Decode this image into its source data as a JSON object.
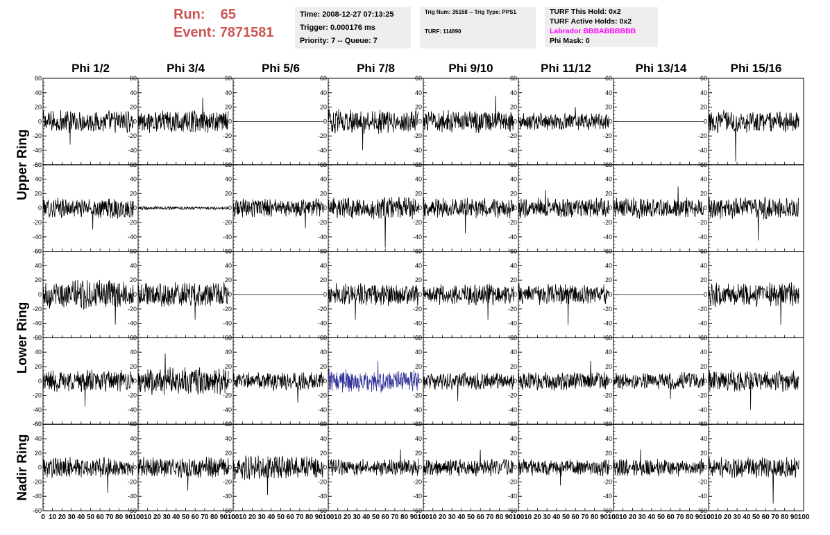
{
  "header": {
    "run_label": "Run:",
    "run_value": "65",
    "event_label": "Event:",
    "event_value": "7871581"
  },
  "time_box": {
    "time": "Time: 2008-12-27 07:13:25",
    "trigger": "Trigger: 0.000176 ms",
    "priority": "Priority: 7 -- Queue: 7"
  },
  "trig_box": {
    "trig": "Trig Num: 35158 -- Trig Type: PPS1",
    "turf": "TURF: 114890"
  },
  "turf_box": {
    "this_hold": "TURF This Hold: 0x2",
    "active_holds": "TURF Active Holds: 0x2",
    "labrador": "Labrador BBBABBBBBB",
    "phi_mask": "Phi Mask: 0"
  },
  "colors": {
    "run_text": "#cc5555",
    "labrador_text": "#ff00ff",
    "trace": "#000000",
    "highlight_trace": "#333399",
    "info_background": "#eeeeee"
  },
  "chart_data": {
    "type": "line",
    "columns": [
      "Phi 1/2",
      "Phi 3/4",
      "Phi 5/6",
      "Phi 7/8",
      "Phi 9/10",
      "Phi 11/12",
      "Phi 13/14",
      "Phi 15/16"
    ],
    "ring_labels": [
      "Upper Ring",
      "Lower Ring",
      "Nadir Ring"
    ],
    "rows": 5,
    "xlim": [
      0,
      100
    ],
    "ylim": [
      -60,
      60
    ],
    "x_ticks": [
      0,
      10,
      20,
      30,
      40,
      50,
      60,
      70,
      80,
      90,
      100
    ],
    "y_ticks": [
      -60,
      -40,
      -20,
      0,
      20,
      40,
      60
    ],
    "samples": 260,
    "x_end": 95,
    "panels": [
      [
        {
          "amp": 13,
          "spike": -32
        },
        {
          "amp": 13,
          "spike": 33
        },
        {
          "amp": 0
        },
        {
          "amp": 14,
          "spike": -40
        },
        {
          "amp": 13,
          "spike": 36
        },
        {
          "amp": 10,
          "spike": 20
        },
        {
          "amp": 0
        },
        {
          "amp": 13,
          "spike": -55
        }
      ],
      [
        {
          "amp": 12,
          "spike": -30
        },
        {
          "amp": 2
        },
        {
          "amp": 11,
          "spike": -28
        },
        {
          "amp": 13,
          "spike": -55
        },
        {
          "amp": 12,
          "spike": -35
        },
        {
          "amp": 12,
          "spike": 25
        },
        {
          "amp": 12,
          "spike": 30
        },
        {
          "amp": 13,
          "spike": -45
        }
      ],
      [
        {
          "amp": 17,
          "spike": -42
        },
        {
          "amp": 15,
          "spike": -35
        },
        {
          "amp": 0
        },
        {
          "amp": 13,
          "spike": -35
        },
        {
          "amp": 12,
          "spike": -35
        },
        {
          "amp": 12,
          "spike": -42
        },
        {
          "amp": 0
        },
        {
          "amp": 14,
          "spike": -42
        }
      ],
      [
        {
          "amp": 13,
          "spike": -35
        },
        {
          "amp": 16,
          "spike": 38
        },
        {
          "amp": 11,
          "spike": -30
        },
        {
          "amp": 14,
          "spike": 28,
          "highlight": true
        },
        {
          "amp": 10,
          "spike": -28
        },
        {
          "amp": 11,
          "spike": 28
        },
        {
          "amp": 10,
          "spike": -25
        },
        {
          "amp": 13,
          "spike": -40
        }
      ],
      [
        {
          "amp": 12,
          "spike": -35
        },
        {
          "amp": 12,
          "spike": -32
        },
        {
          "amp": 14,
          "spike": -38
        },
        {
          "amp": 10,
          "spike": 25
        },
        {
          "amp": 10,
          "spike": 25
        },
        {
          "amp": 10,
          "spike": -25
        },
        {
          "amp": 10,
          "spike": 25
        },
        {
          "amp": 12,
          "spike": -50
        }
      ]
    ]
  }
}
